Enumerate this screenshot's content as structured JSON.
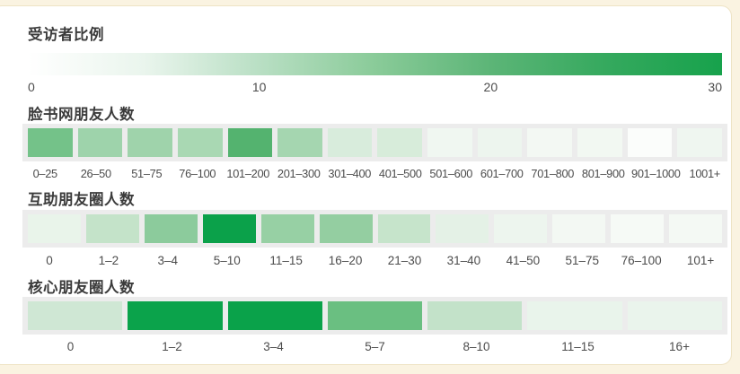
{
  "page": {
    "background_color": "#faf3e1",
    "card_background": "#ffffff",
    "card_border_color": "#eee3c5",
    "strip_background": "#ececec"
  },
  "legend": {
    "title": "受访者比例",
    "ticks": [
      "0",
      "10",
      "20",
      "30"
    ],
    "min": 0,
    "max": 30,
    "gradient_stops": [
      "#ffffff",
      "#eaf5ed",
      "#b9dfc4",
      "#8acb99",
      "#5cb577",
      "#35a95e",
      "#17a24c"
    ]
  },
  "chart_data": [
    {
      "type": "heatmap",
      "title": "脸书网朋友人数",
      "categories": [
        "0–25",
        "26–50",
        "51–75",
        "76–100",
        "101–200",
        "201–300",
        "301–400",
        "401–500",
        "501–600",
        "601–700",
        "701–800",
        "801–900",
        "901–1000",
        "1001+"
      ],
      "values": [
        16,
        12,
        12,
        11,
        20,
        11,
        5,
        5,
        2,
        2.5,
        1.5,
        1.5,
        0.5,
        2
      ],
      "colors": [
        "#74c289",
        "#9ed3ab",
        "#9fd3ab",
        "#a9d8b3",
        "#54b36f",
        "#a5d6b0",
        "#d8ecdc",
        "#d7ecda",
        "#f0f7f1",
        "#edf5ee",
        "#f3f8f3",
        "#f2f8f2",
        "#fbfdfb",
        "#eff6f0"
      ],
      "value_label": "受访者比例",
      "value_unit": "%",
      "scale": {
        "min": 0,
        "max": 30
      }
    },
    {
      "type": "heatmap",
      "title": "互助朋友圈人数",
      "categories": [
        "0",
        "1–2",
        "3–4",
        "5–10",
        "11–15",
        "16–20",
        "21–30",
        "31–40",
        "41–50",
        "51–75",
        "76–100",
        "101+"
      ],
      "values": [
        3,
        7,
        13,
        29,
        12,
        12,
        7,
        3.5,
        2.5,
        1.5,
        1,
        1.2
      ],
      "colors": [
        "#e9f4ea",
        "#c4e3c9",
        "#8ccb9c",
        "#0ba14a",
        "#97d0a4",
        "#94cea1",
        "#c6e4cb",
        "#e4f1e6",
        "#edf5ee",
        "#f3f8f3",
        "#f6faf6",
        "#f4f9f4"
      ],
      "value_label": "受访者比例",
      "value_unit": "%",
      "scale": {
        "min": 0,
        "max": 30
      }
    },
    {
      "type": "heatmap",
      "title": "核心朋友圈人数",
      "categories": [
        "0",
        "1–2",
        "3–4",
        "5–7",
        "8–10",
        "11–15",
        "16+"
      ],
      "values": [
        6,
        29,
        29,
        18,
        7,
        3,
        3
      ],
      "colors": [
        "#cfe7d4",
        "#0ba34b",
        "#0aa24a",
        "#6abf81",
        "#c3e2c9",
        "#e9f4eb",
        "#eaf4ec"
      ],
      "value_label": "受访者比例",
      "value_unit": "%",
      "scale": {
        "min": 0,
        "max": 30
      }
    }
  ]
}
